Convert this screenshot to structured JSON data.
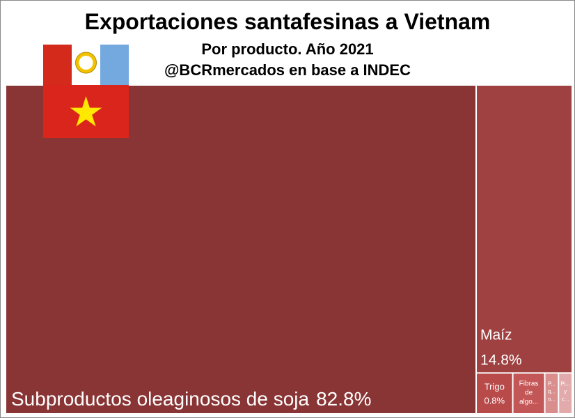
{
  "chart_data": {
    "type": "treemap",
    "title": "Exportaciones santafesinas a Vietnam",
    "subtitle": "Por producto. Año 2021",
    "source": "@BCRmercados en base a INDEC",
    "categories": [
      "Subproductos oleaginosos de soja",
      "Maíz",
      "Trigo",
      "Fibras de algo...",
      "P... q... o...",
      "Pi... y c..."
    ],
    "values": [
      82.8,
      14.8,
      0.8,
      0.7,
      0.3,
      0.3
    ],
    "value_labels": [
      "82.8%",
      "14.8%",
      "0.8%",
      null,
      null,
      null
    ],
    "colors": [
      "#8a3535",
      "#a04141",
      "#b84a4a",
      "#c35656",
      "#d98d8d",
      "#e2aaaa"
    ]
  }
}
